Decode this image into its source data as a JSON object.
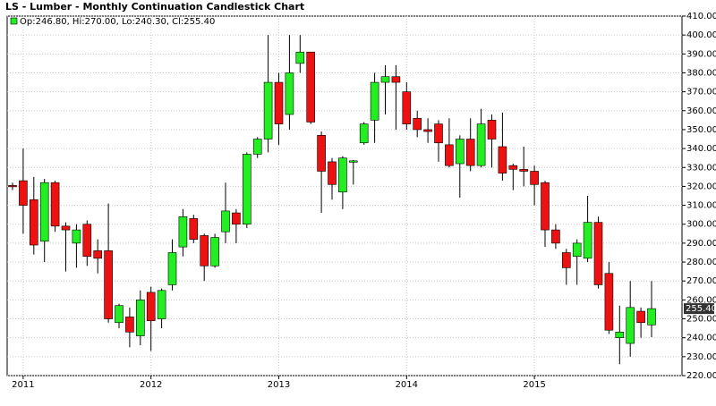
{
  "chart_data": {
    "type": "candlestick",
    "title": "LS - Lumber - Monthly Continuation Candlestick Chart",
    "legend": "Op:246.80, Hi:270.00, Lo:240.30, Cl:255.40",
    "categories": [
      null,
      "2011",
      null,
      null,
      null,
      null,
      null,
      null,
      null,
      null,
      null,
      null,
      null,
      "2012",
      null,
      null,
      null,
      null,
      null,
      null,
      null,
      null,
      null,
      null,
      null,
      "2013",
      null,
      null,
      null,
      null,
      null,
      null,
      null,
      null,
      null,
      null,
      null,
      "2014",
      null,
      null,
      null,
      null,
      null,
      null,
      null,
      null,
      null,
      null,
      null,
      "2015",
      null,
      null,
      null,
      null,
      null,
      null,
      null,
      null,
      null,
      null,
      null
    ],
    "open": [
      320.5,
      323,
      313,
      291,
      322,
      299,
      290,
      300,
      286,
      286,
      248,
      251,
      241,
      264,
      250,
      268,
      288,
      303,
      294,
      278,
      296,
      306,
      300,
      337,
      345,
      375,
      358,
      385,
      391,
      347,
      333,
      317,
      333,
      343,
      355,
      375,
      378,
      370,
      356,
      350,
      353,
      342,
      332,
      345,
      331,
      355,
      341,
      331,
      329,
      328,
      322,
      297,
      285,
      283,
      282,
      301,
      274,
      240,
      237,
      254,
      246.8
    ],
    "high": [
      322,
      340,
      325,
      324,
      323,
      301,
      300,
      302,
      292,
      311,
      258,
      256,
      265,
      267,
      266,
      292,
      308,
      305,
      295,
      295,
      322,
      308,
      338,
      346,
      400,
      380,
      400,
      400,
      391,
      349,
      335,
      336,
      334,
      354,
      380,
      384,
      384,
      375,
      360,
      356,
      355,
      356,
      347,
      356,
      361,
      358,
      359,
      332,
      341,
      331,
      323,
      300,
      287,
      292,
      315,
      304,
      280,
      257,
      270,
      256,
      270
    ],
    "low": [
      318,
      295,
      284,
      280,
      296,
      275,
      277,
      278,
      274,
      248,
      245,
      235,
      236,
      233,
      245,
      265,
      283,
      290,
      270,
      277,
      290,
      290,
      298,
      335,
      338,
      342,
      350,
      380,
      353,
      306,
      313,
      308,
      321,
      342,
      343,
      358,
      350,
      350,
      346,
      343,
      333,
      330,
      314,
      328,
      330,
      330,
      323,
      318,
      320,
      310,
      288,
      287,
      268,
      268,
      280,
      266,
      242,
      226,
      230,
      240,
      240.3
    ],
    "close": [
      320,
      310,
      289,
      322,
      299,
      297,
      297,
      283,
      282,
      250,
      257,
      243,
      260,
      249,
      265,
      285,
      304,
      292,
      278,
      293,
      307,
      300,
      337,
      345,
      375,
      353,
      380,
      391,
      354,
      328,
      321,
      335,
      333.5,
      353,
      375,
      378,
      375,
      353,
      350,
      349,
      343,
      331,
      345,
      331,
      353,
      345,
      327,
      329,
      328,
      321,
      297,
      290,
      277,
      290,
      301,
      268,
      244,
      243,
      256,
      248,
      255.4
    ],
    "up_color": "#22ee22",
    "down_color": "#ee1111",
    "last_value": 255.4,
    "last_value_label": "255.40",
    "ylim": [
      220,
      410
    ],
    "yticks": [
      {
        "value": 220,
        "label": "220.00"
      },
      {
        "value": 230,
        "label": "230.00"
      },
      {
        "value": 240,
        "label": "240.00"
      },
      {
        "value": 250,
        "label": "250.00"
      },
      {
        "value": 260,
        "label": "260.00"
      },
      {
        "value": 270,
        "label": "270.00"
      },
      {
        "value": 280,
        "label": "280.00"
      },
      {
        "value": 290,
        "label": "290.00"
      },
      {
        "value": 300,
        "label": "300.00"
      },
      {
        "value": 310,
        "label": "310.00"
      },
      {
        "value": 320,
        "label": "320.00"
      },
      {
        "value": 330,
        "label": "330.00"
      },
      {
        "value": 340,
        "label": "340.00"
      },
      {
        "value": 350,
        "label": "350.00"
      },
      {
        "value": 360,
        "label": "360.00"
      },
      {
        "value": 370,
        "label": "370.00"
      },
      {
        "value": 380,
        "label": "380.00"
      },
      {
        "value": 390,
        "label": "390.00"
      },
      {
        "value": 400,
        "label": "400.00"
      },
      {
        "value": 410,
        "label": "410.00"
      }
    ],
    "grid": true
  }
}
